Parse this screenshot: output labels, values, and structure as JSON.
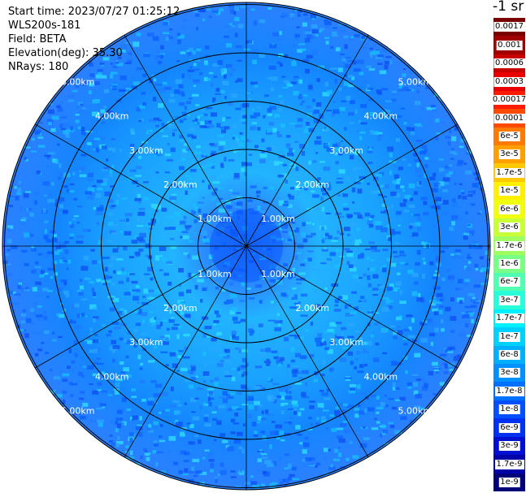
{
  "header": {
    "start_time": "Start time: 2023/07/27 01:25:12",
    "instrument": "WLS200s-181",
    "field": "Field: BETA",
    "elevation": "Elevation(deg): 35.30",
    "nrays": "NRays: 180"
  },
  "range_rings": [
    "1.00km",
    "2.00km",
    "3.00km",
    "4.00km",
    "5.00km"
  ],
  "colorbar": {
    "title": "-1 sr",
    "entries": [
      {
        "label": "0.0017",
        "color": "#7a0000"
      },
      {
        "label": "0.001",
        "color": "#a00000"
      },
      {
        "label": "0.0006",
        "color": "#c80000"
      },
      {
        "label": "0.0003",
        "color": "#e80000"
      },
      {
        "label": "0.00017",
        "color": "#ff1a00"
      },
      {
        "label": "0.0001",
        "color": "#ff4a00"
      },
      {
        "label": "6e-5",
        "color": "#ff7a00"
      },
      {
        "label": "3e-5",
        "color": "#ffa000"
      },
      {
        "label": "1.7e-5",
        "color": "#ffc800"
      },
      {
        "label": "1e-5",
        "color": "#fff000"
      },
      {
        "label": "6e-6",
        "color": "#f0ff10"
      },
      {
        "label": "3e-6",
        "color": "#c8ff38"
      },
      {
        "label": "1.7e-6",
        "color": "#a0ff60"
      },
      {
        "label": "1e-6",
        "color": "#78ff88"
      },
      {
        "label": "6e-7",
        "color": "#50ffaf"
      },
      {
        "label": "3e-7",
        "color": "#28ffd8"
      },
      {
        "label": "1.7e-7",
        "color": "#00f0ff"
      },
      {
        "label": "1e-7",
        "color": "#00d0ff"
      },
      {
        "label": "6e-8",
        "color": "#00b0ff"
      },
      {
        "label": "3e-8",
        "color": "#0090ff"
      },
      {
        "label": "1.7e-8",
        "color": "#0070ff"
      },
      {
        "label": "1e-8",
        "color": "#0050ff"
      },
      {
        "label": "6e-9",
        "color": "#0030f0"
      },
      {
        "label": "3e-9",
        "color": "#0010d0"
      },
      {
        "label": "1.7e-9",
        "color": "#0000a8"
      },
      {
        "label": "1e-9",
        "color": "#000078"
      }
    ]
  }
}
